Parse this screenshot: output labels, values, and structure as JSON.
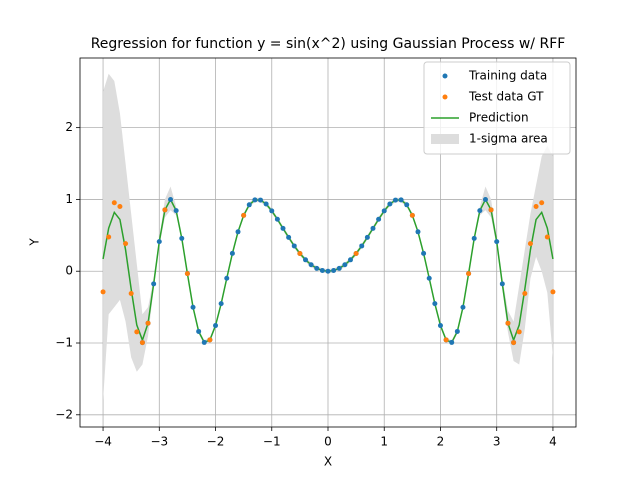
{
  "chart_data": {
    "type": "line",
    "title": "Regression for function y = sin(x^2) using Gaussian Process w/ RFF",
    "xlabel": "X",
    "ylabel": "Y",
    "xlim": [
      -4.41,
      4.41
    ],
    "ylim": [
      -2.17,
      2.97
    ],
    "xticks": [
      {
        "value": -4,
        "label": "−4"
      },
      {
        "value": -3,
        "label": "−3"
      },
      {
        "value": -2,
        "label": "−2"
      },
      {
        "value": -1,
        "label": "−1"
      },
      0,
      1,
      2,
      3,
      4
    ],
    "yticks": [
      {
        "value": -2,
        "label": "−2"
      },
      {
        "value": -1,
        "label": "−1"
      },
      0,
      1,
      2
    ],
    "grid": true,
    "legend": "upper right",
    "x": [
      -4,
      -3.9,
      -3.8,
      -3.7,
      -3.6,
      -3.5,
      -3.4,
      -3.3,
      -3.2,
      -3.1,
      -3,
      -2.9,
      -2.8,
      -2.7,
      -2.6,
      -2.5,
      -2.4,
      -2.3,
      -2.2,
      -2.1,
      -2,
      -1.9,
      -1.8,
      -1.7,
      -1.6,
      -1.5,
      -1.4,
      -1.3,
      -1.2,
      -1.1,
      -1,
      -0.9,
      -0.8,
      -0.7,
      -0.6,
      -0.5,
      -0.4,
      -0.3,
      -0.2,
      -0.1,
      0,
      0.1,
      0.2,
      0.3,
      0.4,
      0.5,
      0.6,
      0.7,
      0.8,
      0.9,
      1,
      1.1,
      1.2,
      1.3,
      1.4,
      1.5,
      1.6,
      1.7,
      1.8,
      1.9,
      2,
      2.1,
      2.2,
      2.3,
      2.4,
      2.5,
      2.6,
      2.7,
      2.8,
      2.9,
      3,
      3.1,
      3.2,
      3.3,
      3.4,
      3.5,
      3.6,
      3.7,
      3.8,
      3.9,
      4
    ],
    "series": [
      {
        "name": "Training data",
        "type": "scatter",
        "color": "#1f77b4",
        "x": [
          -3.3,
          -3.2,
          -3.1,
          -3,
          -2.9,
          -2.8,
          -2.7,
          -2.6,
          -2.5,
          -2.4,
          -2.3,
          -2.2,
          -2.1,
          -2,
          -1.9,
          -1.8,
          -1.7,
          -1.6,
          -1.5,
          -1.4,
          -1.3,
          -1.2,
          -1.1,
          -1,
          -0.9,
          -0.8,
          -0.7,
          -0.6,
          -0.5,
          -0.4,
          -0.3,
          -0.2,
          -0.1,
          0,
          0.1,
          0.2,
          0.3,
          0.4,
          0.5,
          0.6,
          0.7,
          0.8,
          0.9,
          1,
          1.1,
          1.2,
          1.3,
          1.4,
          1.5,
          1.6,
          1.7,
          1.8,
          1.9,
          2,
          2.1,
          2.2,
          2.3,
          2.4,
          2.5,
          2.6,
          2.7,
          2.8,
          2.9,
          3,
          3.1,
          3.2,
          3.3
        ],
        "values": [
          -0.994,
          -0.724,
          -0.176,
          0.412,
          0.854,
          0.999,
          0.844,
          0.458,
          -0.033,
          -0.502,
          -0.839,
          -0.992,
          -0.957,
          -0.757,
          -0.452,
          -0.098,
          0.248,
          0.549,
          0.778,
          0.925,
          0.993,
          0.991,
          0.936,
          0.841,
          0.724,
          0.597,
          0.471,
          0.352,
          0.247,
          0.159,
          0.09,
          0.04,
          0.01,
          0,
          0.01,
          0.04,
          0.09,
          0.159,
          0.247,
          0.352,
          0.471,
          0.597,
          0.724,
          0.841,
          0.936,
          0.991,
          0.993,
          0.925,
          0.778,
          0.549,
          0.248,
          -0.098,
          -0.452,
          -0.757,
          -0.957,
          -0.992,
          -0.839,
          -0.502,
          -0.033,
          0.458,
          0.844,
          0.999,
          0.854,
          0.412,
          -0.176,
          -0.724,
          -0.994
        ]
      },
      {
        "name": "Test data GT",
        "type": "scatter",
        "color": "#ff7f0e",
        "x": [
          -4,
          -3.9,
          -3.8,
          -3.7,
          -3.6,
          -3.5,
          -3.4,
          -3.3,
          -3.2,
          -2.9,
          -2.5,
          -2.1,
          -1.5,
          -0.5,
          0.5,
          1.5,
          2.1,
          2.5,
          2.9,
          3.2,
          3.3,
          3.4,
          3.5,
          3.6,
          3.7,
          3.8,
          3.9,
          4
        ],
        "values": [
          -0.288,
          0.477,
          0.954,
          0.902,
          0.384,
          -0.311,
          -0.845,
          -0.994,
          -0.724,
          0.854,
          -0.033,
          -0.957,
          0.778,
          0.247,
          0.247,
          0.778,
          -0.957,
          -0.033,
          0.854,
          -0.724,
          -0.994,
          -0.845,
          -0.311,
          0.384,
          0.902,
          0.954,
          0.477,
          -0.288
        ]
      },
      {
        "name": "Prediction",
        "type": "line",
        "color": "#2ca02c",
        "values": [
          0.17,
          0.6,
          0.82,
          0.72,
          0.3,
          -0.25,
          -0.75,
          -0.96,
          -0.724,
          -0.176,
          0.412,
          0.854,
          0.999,
          0.844,
          0.458,
          -0.033,
          -0.502,
          -0.839,
          -0.992,
          -0.957,
          -0.757,
          -0.452,
          -0.098,
          0.248,
          0.549,
          0.778,
          0.925,
          0.993,
          0.991,
          0.936,
          0.841,
          0.724,
          0.597,
          0.471,
          0.352,
          0.247,
          0.159,
          0.09,
          0.04,
          0.01,
          0,
          0.01,
          0.04,
          0.09,
          0.159,
          0.247,
          0.352,
          0.471,
          0.597,
          0.724,
          0.841,
          0.936,
          0.991,
          0.993,
          0.925,
          0.778,
          0.549,
          0.248,
          -0.098,
          -0.452,
          -0.757,
          -0.957,
          -0.992,
          -0.839,
          -0.502,
          -0.033,
          0.458,
          0.844,
          0.999,
          0.854,
          0.412,
          -0.176,
          -0.724,
          -0.96,
          -0.75,
          -0.25,
          0.3,
          0.72,
          0.82,
          0.6,
          0.17
        ]
      },
      {
        "name": "1-sigma area",
        "type": "area",
        "color": "#dddddd",
        "upper": [
          2.5,
          2.75,
          2.65,
          2.2,
          1.5,
          0.8,
          0.1,
          -0.6,
          -0.5,
          -0.1,
          0.45,
          1.0,
          1.18,
          0.9,
          0.488,
          -0.003,
          -0.472,
          -0.809,
          -0.962,
          -0.927,
          -0.727,
          -0.422,
          -0.068,
          0.278,
          0.579,
          0.808,
          0.955,
          1.023,
          1.021,
          0.966,
          0.871,
          0.754,
          0.627,
          0.501,
          0.382,
          0.277,
          0.189,
          0.12,
          0.07,
          0.04,
          0.03,
          0.04,
          0.07,
          0.12,
          0.189,
          0.277,
          0.382,
          0.501,
          0.627,
          0.754,
          0.871,
          0.966,
          1.021,
          1.023,
          0.955,
          0.808,
          0.579,
          0.278,
          -0.068,
          -0.422,
          -0.727,
          -0.927,
          -0.962,
          -0.809,
          -0.472,
          -0.003,
          0.488,
          0.9,
          1.18,
          1.0,
          0.45,
          -0.1,
          -0.55,
          -0.7,
          -0.2,
          0.3,
          0.8,
          1.2,
          1.6,
          1.75,
          1.6
        ],
        "lower": [
          -1.8,
          -0.6,
          -0.5,
          -0.4,
          -0.7,
          -1.2,
          -1.4,
          -1.3,
          -0.9,
          -0.25,
          0.35,
          0.75,
          0.85,
          0.78,
          0.428,
          -0.063,
          -0.532,
          -0.869,
          -1.022,
          -0.987,
          -0.787,
          -0.482,
          -0.128,
          0.218,
          0.519,
          0.748,
          0.895,
          0.963,
          0.961,
          0.906,
          0.811,
          0.694,
          0.567,
          0.441,
          0.322,
          0.217,
          0.129,
          0.06,
          0.01,
          -0.02,
          -0.03,
          -0.02,
          0.01,
          0.06,
          0.129,
          0.217,
          0.322,
          0.441,
          0.567,
          0.694,
          0.811,
          0.906,
          0.961,
          0.963,
          0.895,
          0.748,
          0.519,
          0.218,
          -0.128,
          -0.482,
          -0.787,
          -0.987,
          -1.022,
          -0.869,
          -0.532,
          -0.063,
          0.428,
          0.78,
          0.85,
          0.75,
          0.35,
          -0.25,
          -0.85,
          -1.25,
          -1.3,
          -0.8,
          -0.1,
          0.2,
          0.0,
          -0.3,
          -1.2
        ]
      }
    ]
  }
}
